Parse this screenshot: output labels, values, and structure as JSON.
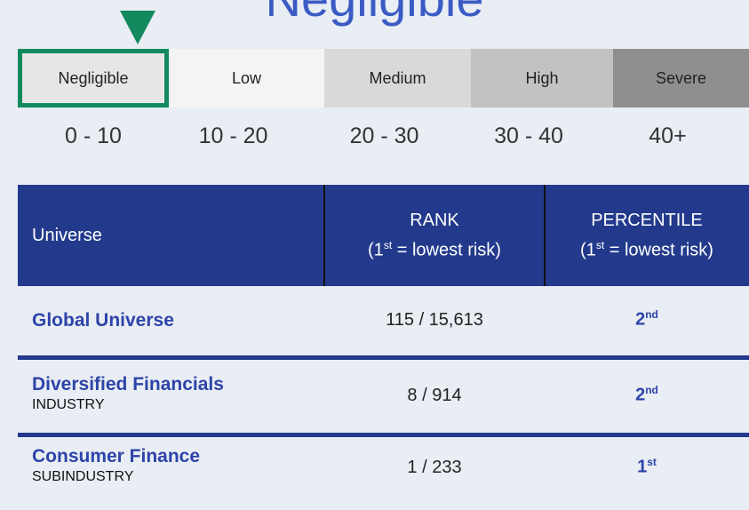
{
  "title": "Negligible",
  "levels": [
    {
      "name": "Negligible",
      "range": "0 - 10"
    },
    {
      "name": "Low",
      "range": "10 - 20"
    },
    {
      "name": "Medium",
      "range": "20 - 30"
    },
    {
      "name": "High",
      "range": "30 - 40"
    },
    {
      "name": "Severe",
      "range": "40+"
    }
  ],
  "table": {
    "header": {
      "universe": "Universe",
      "rank": {
        "title": "RANK",
        "pre": "(1",
        "sup": "st",
        "post": " = lowest risk)"
      },
      "percentile": {
        "title": "PERCENTILE",
        "pre": "(1",
        "sup": "st",
        "post": " = lowest risk)"
      }
    },
    "rows": [
      {
        "name": "Global Universe",
        "rank": "115 / 15,613",
        "pct": "2",
        "pct_sup": "nd"
      },
      {
        "name": "Diversified Financials",
        "sub": "INDUSTRY",
        "rank": "8 / 914",
        "pct": "2",
        "pct_sup": "nd"
      },
      {
        "name": "Consumer Finance",
        "sub": "SUBINDUSTRY",
        "rank": "1 / 233",
        "pct": "1",
        "pct_sup": "st"
      }
    ]
  }
}
